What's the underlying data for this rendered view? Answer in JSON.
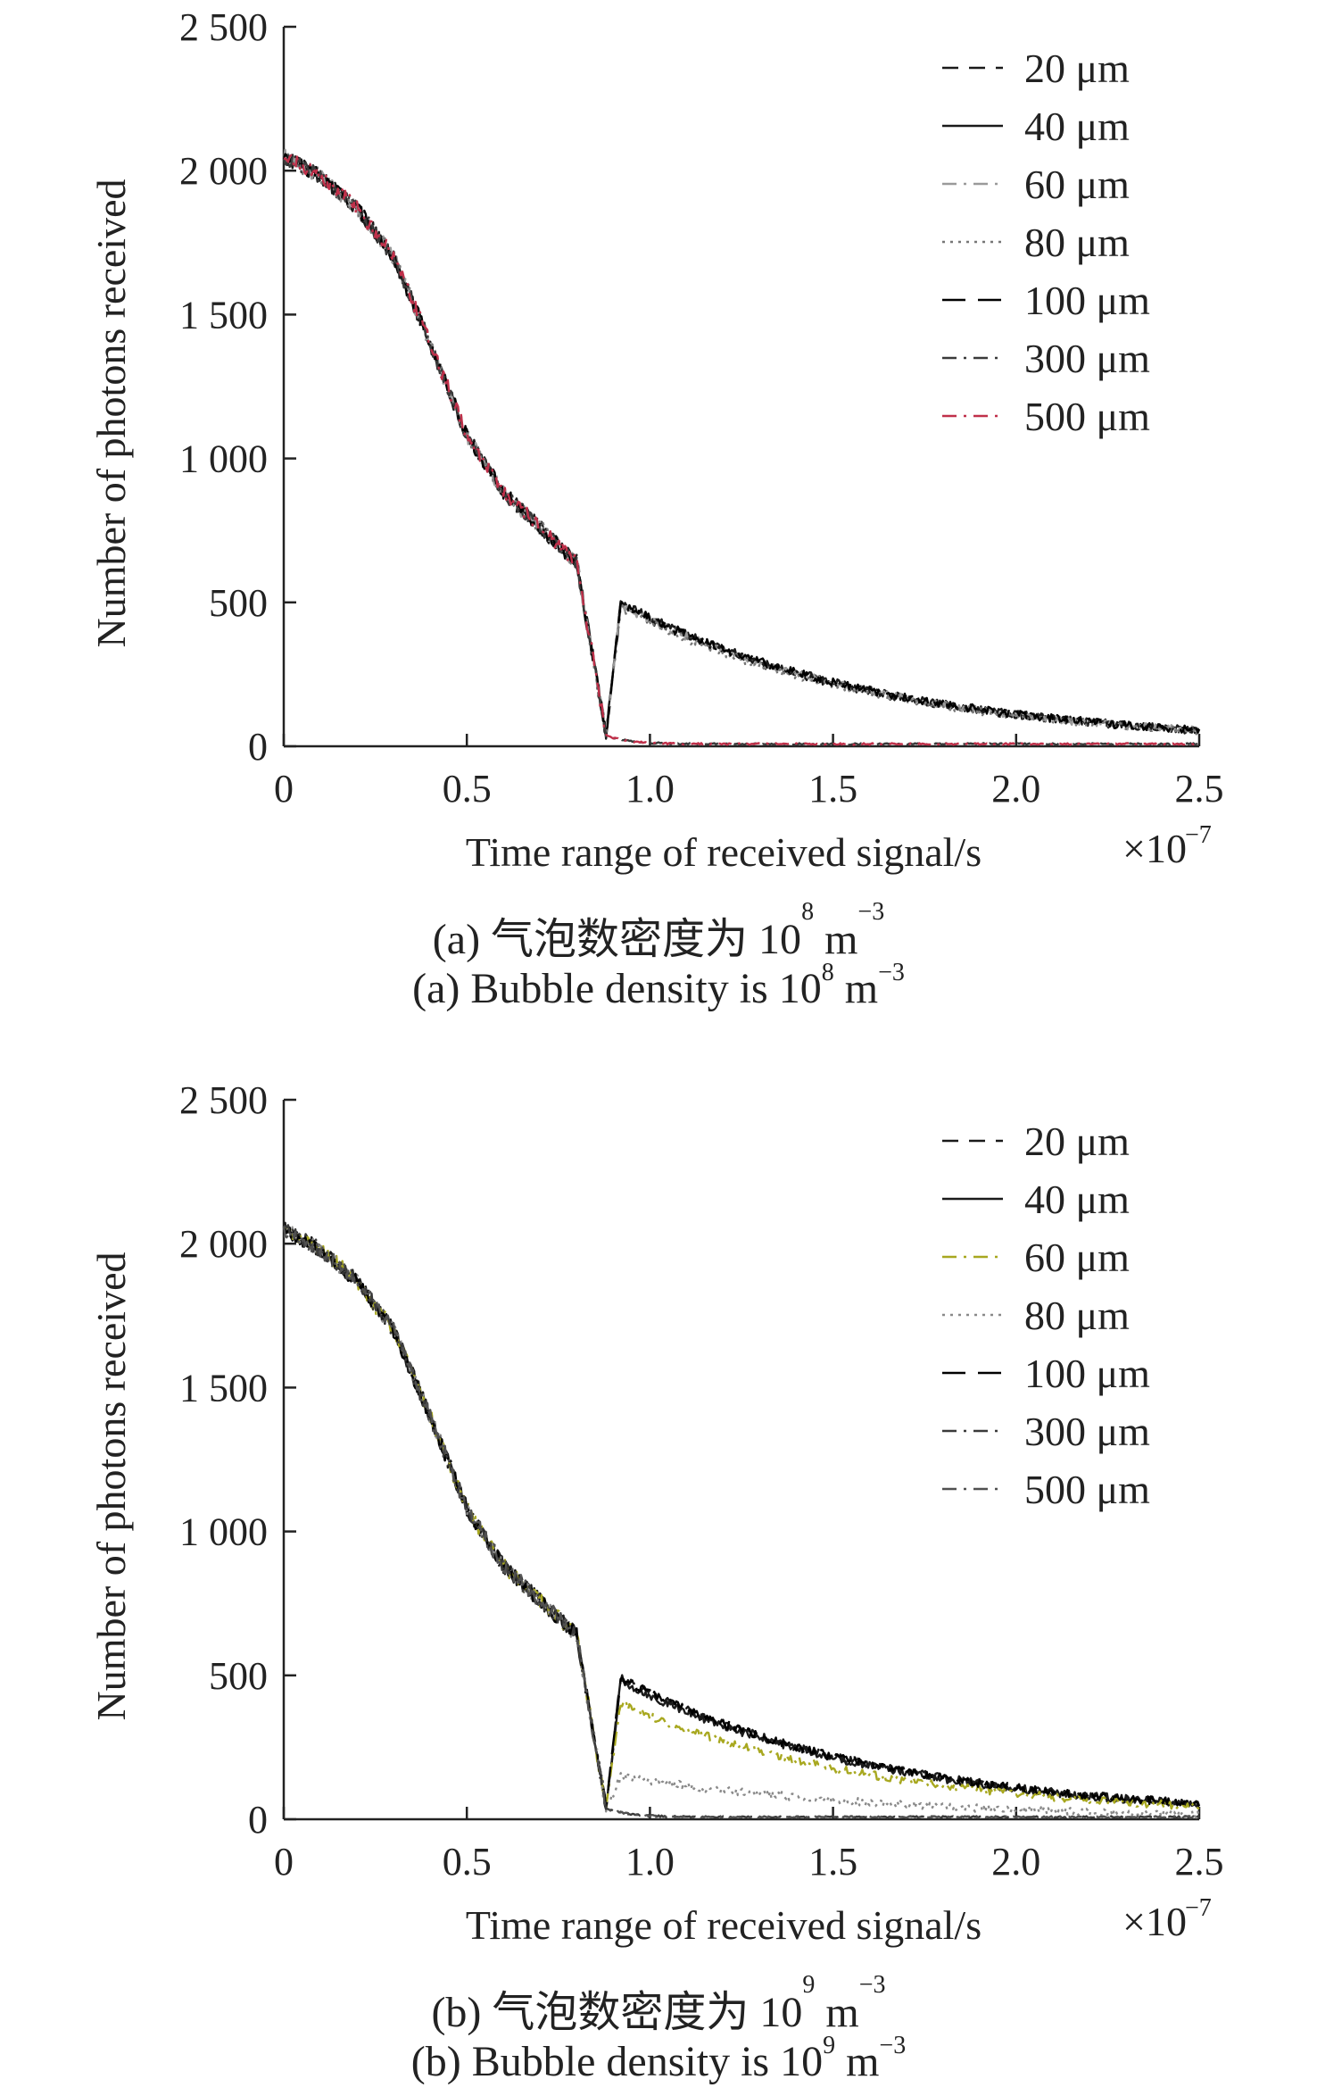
{
  "chart_data": [
    {
      "type": "line",
      "panel": "a",
      "xlabel": "Time range of received signal/s",
      "x_multiplier": "×10",
      "x_multiplier_exp": "−7",
      "ylabel": "Number of photons received",
      "xlim": [
        0,
        2.5
      ],
      "ylim": [
        0,
        2500
      ],
      "xticks": [
        0,
        0.5,
        1.0,
        1.5,
        2.0,
        2.5
      ],
      "xtick_labels": [
        "0",
        "0.5",
        "1.0",
        "1.5",
        "2.0",
        "2.5"
      ],
      "yticks": [
        0,
        500,
        1000,
        1500,
        2000,
        2500
      ],
      "ytick_labels": [
        "0",
        "500",
        "1 000",
        "1 500",
        "2 000",
        "2 500"
      ],
      "legend_position": "top-right",
      "grid": false,
      "series": [
        {
          "name": "20 μm",
          "color": "#1a1a1a",
          "style": "dashed",
          "tail_peak": 490
        },
        {
          "name": "40 μm",
          "color": "#1a1a1a",
          "style": "solid",
          "tail_peak": 500
        },
        {
          "name": "60 μm",
          "color": "#9a9a9a",
          "style": "dashdot",
          "tail_peak": 490
        },
        {
          "name": "80 μm",
          "color": "#777777",
          "style": "dotted",
          "tail_peak": 480
        },
        {
          "name": "100 μm",
          "color": "#000000",
          "style": "longdash",
          "tail_peak": 500
        },
        {
          "name": "300 μm",
          "color": "#3a3a3a",
          "style": "dashdot",
          "tail_peak": 0
        },
        {
          "name": "500 μm",
          "color": "#c0304a",
          "style": "dashdot",
          "tail_peak": 0
        }
      ],
      "caption_cn": "(a) 气泡数密度为 10",
      "caption_cn_exp": "8",
      "caption_cn_unit": " m",
      "caption_cn_unit_exp": "−3",
      "caption_en": "(a) Bubble density is 10",
      "caption_en_exp": "8",
      "caption_en_unit": " m",
      "caption_en_unit_exp": "−3"
    },
    {
      "type": "line",
      "panel": "b",
      "xlabel": "Time range of received signal/s",
      "x_multiplier": "×10",
      "x_multiplier_exp": "−7",
      "ylabel": "Number of photons received",
      "xlim": [
        0,
        2.5
      ],
      "ylim": [
        0,
        2500
      ],
      "xticks": [
        0,
        0.5,
        1.0,
        1.5,
        2.0,
        2.5
      ],
      "xtick_labels": [
        "0",
        "0.5",
        "1.0",
        "1.5",
        "2.0",
        "2.5"
      ],
      "yticks": [
        0,
        500,
        1000,
        1500,
        2000,
        2500
      ],
      "ytick_labels": [
        "0",
        "500",
        "1 000",
        "1 500",
        "2 000",
        "2 500"
      ],
      "legend_position": "top-right",
      "grid": false,
      "series": [
        {
          "name": "20 μm",
          "color": "#1a1a1a",
          "style": "dashed",
          "tail_peak": 490
        },
        {
          "name": "40 μm",
          "color": "#1a1a1a",
          "style": "solid",
          "tail_peak": 480
        },
        {
          "name": "60 μm",
          "color": "#a8a820",
          "style": "dashdot",
          "tail_peak": 400
        },
        {
          "name": "80 μm",
          "color": "#8a8a8a",
          "style": "dotted",
          "tail_peak": 150
        },
        {
          "name": "100 μm",
          "color": "#000000",
          "style": "longdash",
          "tail_peak": 490
        },
        {
          "name": "300 μm",
          "color": "#3a3a3a",
          "style": "dashdot",
          "tail_peak": 0
        },
        {
          "name": "500 μm",
          "color": "#505050",
          "style": "dashdot",
          "tail_peak": 0
        }
      ],
      "caption_cn": "(b) 气泡数密度为 10",
      "caption_cn_exp": "9",
      "caption_cn_unit": " m",
      "caption_cn_unit_exp": "−3",
      "caption_en": "(b) Bubble density is 10",
      "caption_en_exp": "9",
      "caption_en_unit": " m",
      "caption_en_unit_exp": "−3"
    }
  ]
}
